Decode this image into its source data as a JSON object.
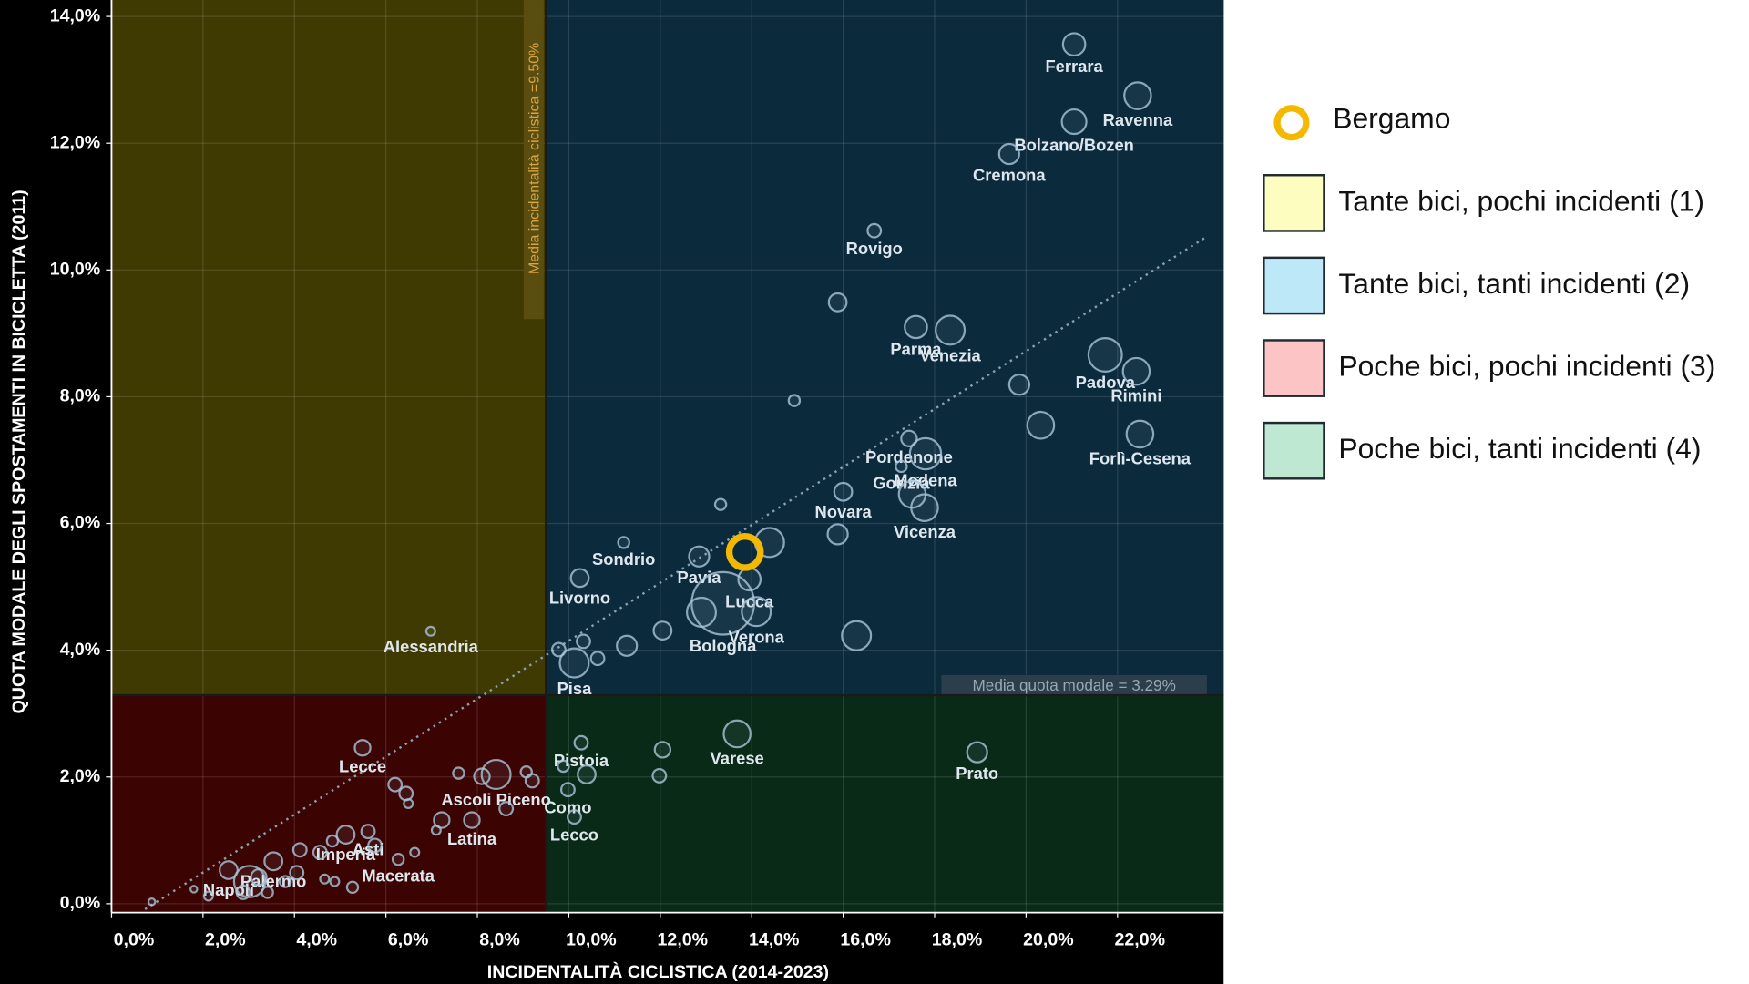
{
  "chart_data": {
    "type": "scatter",
    "x_label": "INCIDENTALITÀ CICLISTICA (2014-2023)",
    "y_label": "QUOTA MODALE DEGLI SPOSTAMENTI IN BICICLETTA (2011)",
    "xlim": [
      0,
      24.32
    ],
    "ylim": [
      -0.14,
      14.26
    ],
    "xticks": [
      {
        "value": 0,
        "label": "0,0%"
      },
      {
        "value": 2,
        "label": "2,0%"
      },
      {
        "value": 4,
        "label": "4,0%"
      },
      {
        "value": 6,
        "label": "6,0%"
      },
      {
        "value": 8,
        "label": "8,0%"
      },
      {
        "value": 10,
        "label": "10,0%"
      },
      {
        "value": 12,
        "label": "12,0%"
      },
      {
        "value": 14,
        "label": "14,0%"
      },
      {
        "value": 16,
        "label": "16,0%"
      },
      {
        "value": 18,
        "label": "18,0%"
      },
      {
        "value": 20,
        "label": "20,0%"
      },
      {
        "value": 22,
        "label": "22,0%"
      }
    ],
    "yticks": [
      {
        "value": 0,
        "label": "0,0%"
      },
      {
        "value": 2,
        "label": "2,0%"
      },
      {
        "value": 4,
        "label": "4,0%"
      },
      {
        "value": 6,
        "label": "6,0%"
      },
      {
        "value": 8,
        "label": "8,0%"
      },
      {
        "value": 10,
        "label": "10,0%"
      },
      {
        "value": 12,
        "label": "12,0%"
      },
      {
        "value": 14,
        "label": "14,0%"
      }
    ],
    "grid": true,
    "vline": {
      "value": 9.5,
      "label": "Media incidentalità ciclistica =9.50%",
      "color": "#d9a441"
    },
    "hline": {
      "value": 3.29,
      "label": "Media quota modale = 3.29%",
      "color": "#9aa7b3"
    },
    "quadrants": [
      {
        "name": "Tante bici, pochi incidenti (1)",
        "color": "#fdfdc0",
        "fill": "#3f3a02"
      },
      {
        "name": "Tante bici, tanti incidenti (2)",
        "color": "#bde8f8",
        "fill": "#0b2a3c"
      },
      {
        "name": "Poche bici, pochi incidenti (3)",
        "color": "#fcc4c4",
        "fill": "#3c0303"
      },
      {
        "name": "Poche bici, tanti incidenti (4)",
        "color": "#bfe8d2",
        "fill": "#092a17"
      }
    ],
    "series": [
      {
        "color": "#a9c6da",
        "x": [
          21.05,
          22.44,
          21.05,
          19.63,
          16.68,
          15.88,
          17.59,
          18.34,
          21.73,
          22.41,
          19.85,
          14.93,
          20.32,
          22.49,
          17.44,
          17.8,
          17.27,
          16.0,
          17.51,
          17.78,
          13.32,
          15.88,
          14.39,
          12.85,
          11.2,
          10.24,
          13.95,
          13.37,
          12.9,
          14.1,
          16.29,
          12.05,
          11.27,
          10.32,
          9.78,
          10.12,
          10.63,
          6.98,
          13.68,
          18.93,
          10.27,
          12.05,
          10.39,
          11.98,
          9.88,
          9.98,
          10.12,
          8.41,
          9.07,
          9.2,
          5.49,
          7.59,
          8.1,
          6.2,
          6.44,
          6.49,
          8.63,
          5.12,
          7.88,
          7.22,
          7.1,
          5.61,
          5.76,
          3.54,
          4.12,
          4.56,
          4.83,
          6.27,
          6.63,
          2.56,
          3.02,
          3.22,
          2.88,
          3.41,
          3.8,
          4.05,
          4.66,
          4.88,
          5.27,
          2.12,
          1.8,
          0.88
        ],
        "values": [
          13.56,
          12.75,
          12.34,
          11.83,
          10.62,
          9.49,
          9.1,
          9.05,
          8.66,
          8.4,
          8.19,
          7.94,
          7.55,
          7.41,
          7.34,
          7.1,
          6.9,
          6.5,
          6.46,
          6.25,
          6.3,
          5.83,
          5.7,
          5.48,
          5.7,
          5.14,
          5.12,
          4.74,
          4.6,
          4.61,
          4.23,
          4.31,
          4.07,
          4.14,
          4.01,
          3.8,
          3.87,
          4.3,
          2.68,
          2.39,
          2.54,
          2.43,
          2.04,
          2.02,
          2.17,
          1.8,
          1.37,
          2.04,
          2.08,
          1.94,
          2.46,
          2.06,
          2.01,
          1.88,
          1.74,
          1.58,
          1.5,
          1.09,
          1.32,
          1.32,
          1.16,
          1.14,
          0.92,
          0.67,
          0.85,
          0.81,
          0.99,
          0.7,
          0.81,
          0.53,
          0.35,
          0.42,
          0.18,
          0.18,
          0.35,
          0.49,
          0.39,
          0.35,
          0.26,
          0.12,
          0.23,
          0.03
        ],
        "sizes": [
          10,
          12,
          11,
          9,
          6,
          8,
          10,
          13,
          15,
          12,
          9,
          5,
          12,
          12,
          7,
          14,
          5,
          8,
          12,
          12,
          5,
          9,
          13,
          9,
          5,
          8,
          10,
          28,
          13,
          13,
          13,
          8,
          9,
          6,
          6,
          13,
          6,
          4,
          12,
          9,
          6,
          7,
          8,
          6,
          5,
          6,
          6,
          13,
          5,
          6,
          7,
          5,
          7,
          6,
          6,
          4,
          6,
          8,
          7,
          7,
          4,
          6,
          6,
          8,
          6,
          6,
          5,
          5,
          4,
          8,
          14,
          7,
          6,
          5,
          5,
          6,
          4,
          4,
          5,
          4,
          3,
          3
        ],
        "labels": [
          "Ferrara",
          "Ravenna",
          "Bolzano/Bozen",
          "Cremona",
          "Rovigo",
          null,
          "Parma",
          "Venezia",
          "Padova",
          "Rimini",
          null,
          null,
          null,
          "Forlì-Cesena",
          "Pordenone",
          "Modena",
          "Gorizia",
          "Novara",
          null,
          "Vicenza",
          null,
          null,
          null,
          "Pavia",
          "Sondrio",
          "Livorno",
          "Lucca",
          "Bologna",
          null,
          "Verona",
          null,
          null,
          null,
          null,
          null,
          "Pisa",
          null,
          "Alessandria",
          "Varese",
          "Prato",
          "Pistoia",
          null,
          null,
          null,
          null,
          "Como",
          "Lecco",
          "Ascoli Piceno",
          null,
          null,
          "Lecce",
          null,
          null,
          null,
          null,
          null,
          null,
          "Imperia",
          "Latina",
          null,
          null,
          "Asti",
          null,
          "Palermo",
          null,
          null,
          null,
          "Macerata",
          null,
          "Napoli",
          null,
          null,
          null,
          null,
          null,
          null,
          null,
          null,
          null,
          null,
          null,
          null
        ]
      },
      {
        "name": "Bergamo",
        "color": "#f5b800",
        "x": [
          13.85
        ],
        "values": [
          5.55
        ],
        "sizes": [
          14
        ]
      }
    ]
  }
}
